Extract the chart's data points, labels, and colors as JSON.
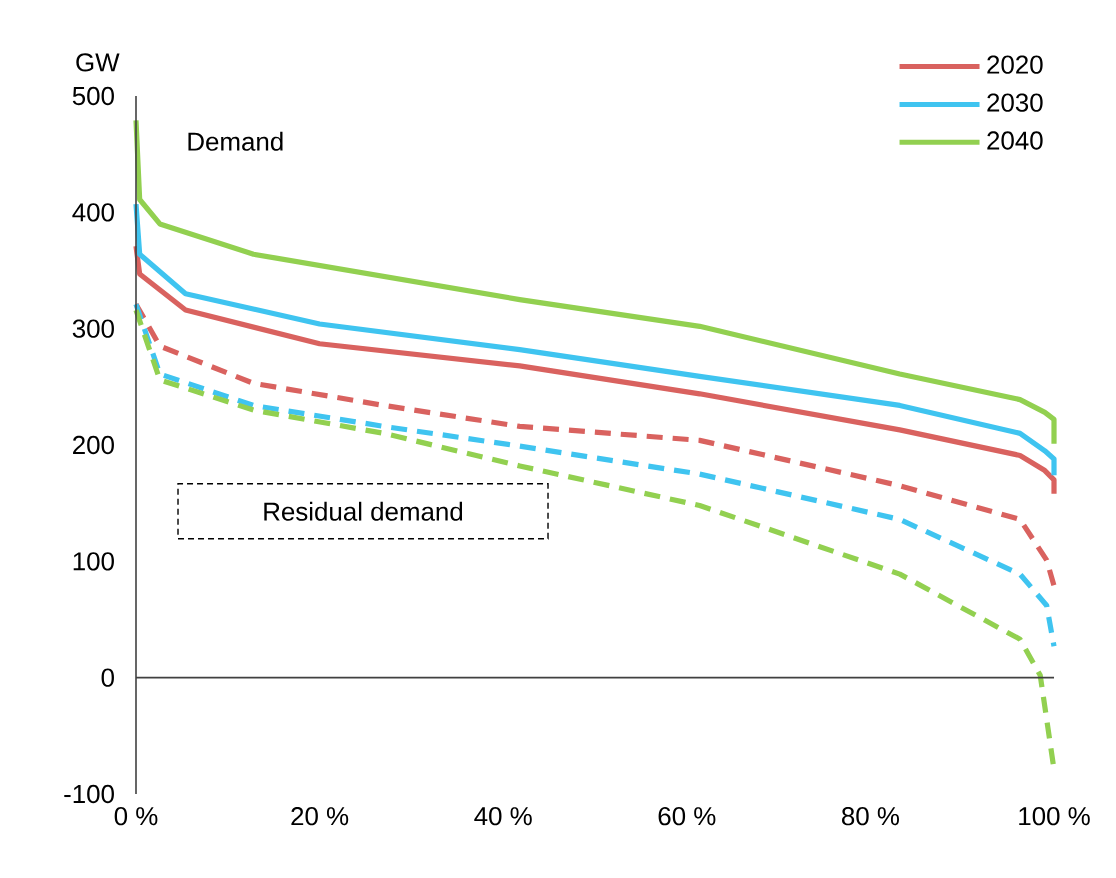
{
  "chart_data": {
    "type": "line",
    "ylabel": "GW",
    "annotations": [
      "Demand",
      "Residual demand"
    ],
    "xlim": [
      0,
      100
    ],
    "ylim": [
      -100,
      500
    ],
    "xticks": [
      {
        "value": 0,
        "label": "0 %"
      },
      {
        "value": 20,
        "label": "20 %"
      },
      {
        "value": 40,
        "label": "40 %"
      },
      {
        "value": 60,
        "label": "60 %"
      },
      {
        "value": 80,
        "label": "80 %"
      },
      {
        "value": 100,
        "label": "100 %"
      }
    ],
    "yticks": [
      -100,
      0,
      100,
      200,
      300,
      400,
      500
    ],
    "legend": "top right",
    "ref_lines": [
      {
        "axis": "y",
        "value": 0
      }
    ],
    "series": [
      {
        "name": "2020",
        "color": "#d9625f",
        "line_style": "solid",
        "x": [
          0,
          0.4,
          5.4,
          20,
          41.8,
          61.4,
          83.2,
          96.3,
          99,
          100,
          100
        ],
        "values": [
          371,
          347,
          316,
          287,
          268,
          244,
          213,
          191,
          178,
          170,
          158
        ]
      },
      {
        "name": "2030",
        "color": "#3fc4f0",
        "line_style": "solid",
        "x": [
          0,
          0.4,
          5.4,
          20,
          41.8,
          61.4,
          83.2,
          96.3,
          99,
          100,
          100
        ],
        "values": [
          407,
          364,
          330,
          304,
          282,
          259,
          234,
          210,
          195,
          188,
          174
        ]
      },
      {
        "name": "2040",
        "color": "#92d050",
        "line_style": "solid",
        "x": [
          0,
          0.4,
          2.6,
          12.8,
          41.8,
          61.4,
          83.2,
          96.3,
          99,
          100,
          100
        ],
        "values": [
          479,
          411,
          390,
          364,
          325,
          302,
          261,
          239,
          228,
          222,
          201
        ]
      },
      {
        "color": "#d9625f",
        "line_style": "dashed",
        "x": [
          0,
          2.6,
          12.8,
          27,
          41.8,
          61.4,
          83.2,
          96.3,
          99.2,
          100
        ],
        "values": [
          321,
          285,
          253,
          234,
          216,
          204,
          165,
          136,
          101,
          79
        ]
      },
      {
        "color": "#3fc4f0",
        "line_style": "dashed",
        "x": [
          0,
          2.6,
          12.8,
          27,
          41.8,
          61.4,
          83.2,
          96.3,
          99.2,
          100
        ],
        "values": [
          321,
          261,
          234,
          216,
          199,
          175,
          136,
          89,
          62,
          27
        ]
      },
      {
        "color": "#92d050",
        "line_style": "dashed",
        "x": [
          0,
          2.6,
          12.8,
          27,
          41.8,
          61.4,
          83.2,
          96.3,
          98.5,
          100
        ],
        "values": [
          316,
          256,
          230,
          210,
          182,
          148,
          89,
          33,
          2,
          -79
        ]
      }
    ]
  }
}
